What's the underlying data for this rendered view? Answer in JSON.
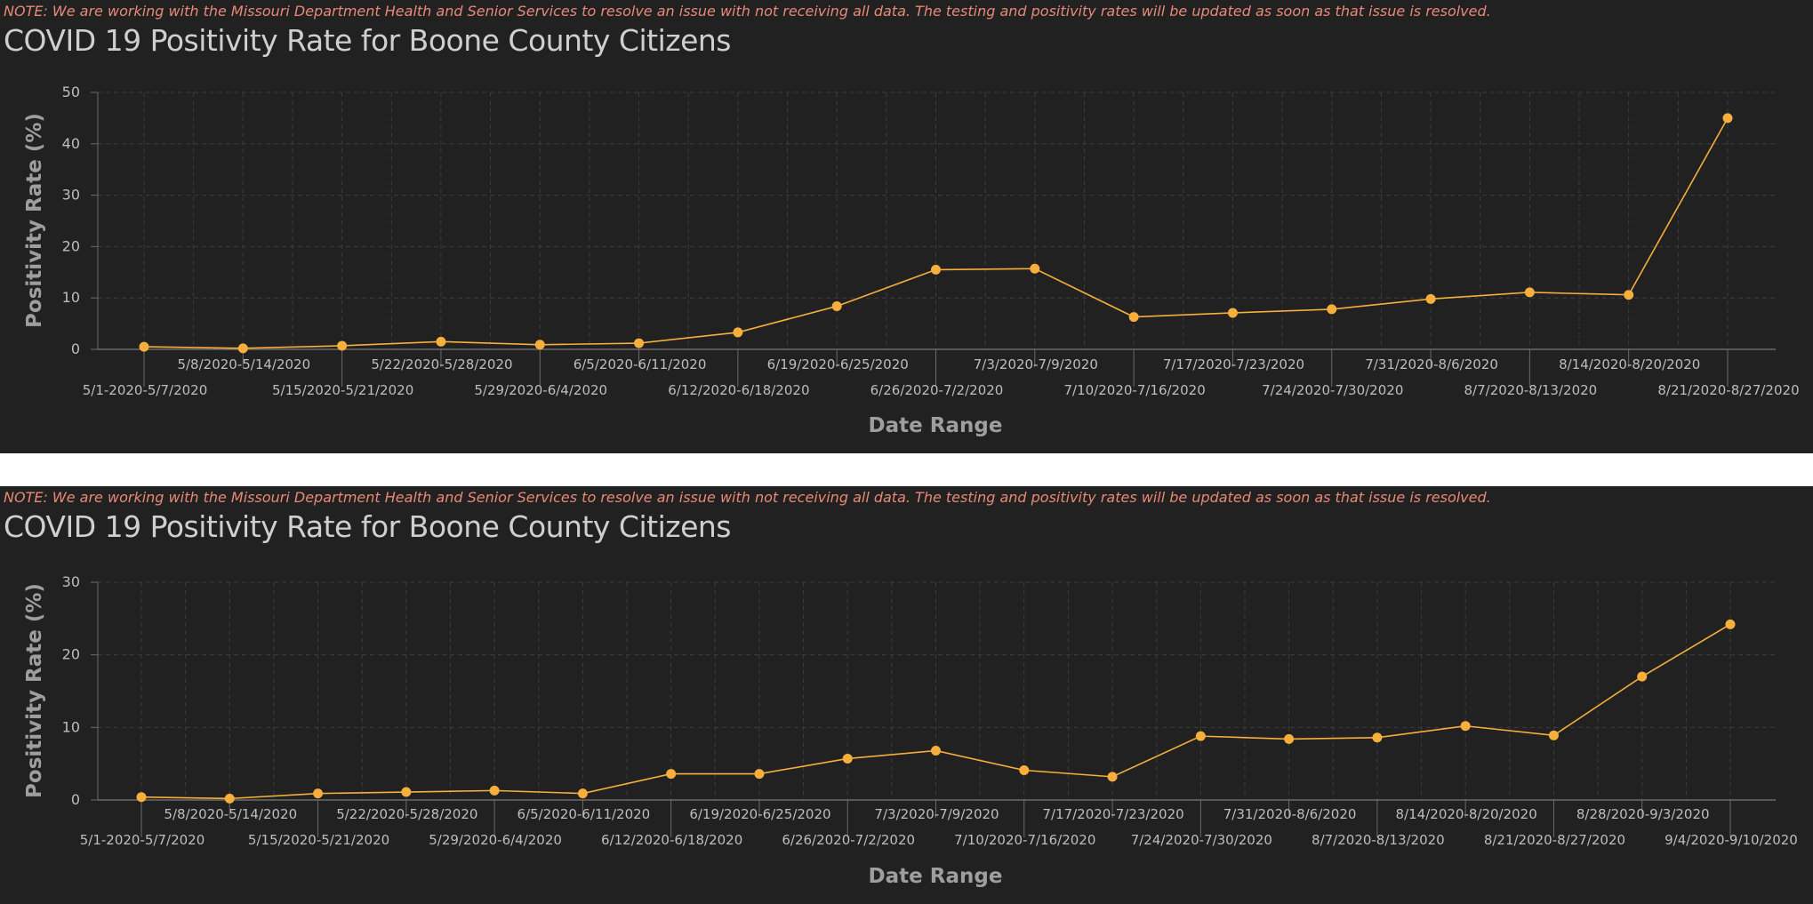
{
  "charts": [
    {
      "note": "NOTE: We are working with the Missouri Department Health and Senior Services to resolve an issue with not receiving all data. The testing and positivity rates will be updated as soon as that issue is resolved.",
      "title": "COVID 19 Positivity Rate for Boone County Citizens"
    },
    {
      "note": "NOTE: We are working with the Missouri Department Health and Senior Services to resolve an issue with not receiving all data. The testing and positivity rates will be updated as soon as that issue is resolved.",
      "title": "COVID 19 Positivity Rate for Boone County Citizens"
    }
  ],
  "colors": {
    "series": "#f6ae3c",
    "background": "#212121",
    "grid": "#3c3c3c",
    "note": "#e88877"
  },
  "chart_data": [
    {
      "type": "line",
      "xlabel": "Date Range",
      "ylabel": "Positivity Rate (%)",
      "ylim": [
        0,
        50
      ],
      "yticks": [
        0,
        10,
        20,
        30,
        40,
        50
      ],
      "grid": true,
      "categories": [
        "5/1-2020-5/7/2020",
        "5/8/2020-5/14/2020",
        "5/15/2020-5/21/2020",
        "5/22/2020-5/28/2020",
        "5/29/2020-6/4/2020",
        "6/5/2020-6/11/2020",
        "6/12/2020-6/18/2020",
        "6/19/2020-6/25/2020",
        "6/26/2020-7/2/2020",
        "7/3/2020-7/9/2020",
        "7/10/2020-7/16/2020",
        "7/17/2020-7/23/2020",
        "7/24/2020-7/30/2020",
        "7/31/2020-8/6/2020",
        "8/7/2020-8/13/2020",
        "8/14/2020-8/20/2020",
        "8/21/2020-8/27/2020"
      ],
      "series": [
        {
          "values": [
            0.5,
            0.2,
            0.7,
            1.5,
            0.9,
            1.2,
            3.3,
            8.4,
            15.5,
            15.7,
            6.3,
            7.1,
            7.8,
            9.8,
            11.1,
            10.6,
            45.0
          ]
        }
      ]
    },
    {
      "type": "line",
      "xlabel": "Date Range",
      "ylabel": "Positivity Rate (%)",
      "ylim": [
        0,
        30
      ],
      "yticks": [
        0,
        10,
        20,
        30
      ],
      "grid": true,
      "categories": [
        "5/1-2020-5/7/2020",
        "5/8/2020-5/14/2020",
        "5/15/2020-5/21/2020",
        "5/22/2020-5/28/2020",
        "5/29/2020-6/4/2020",
        "6/5/2020-6/11/2020",
        "6/12/2020-6/18/2020",
        "6/19/2020-6/25/2020",
        "6/26/2020-7/2/2020",
        "7/3/2020-7/9/2020",
        "7/10/2020-7/16/2020",
        "7/17/2020-7/23/2020",
        "7/24/2020-7/30/2020",
        "7/31/2020-8/6/2020",
        "8/7/2020-8/13/2020",
        "8/14/2020-8/20/2020",
        "8/21/2020-8/27/2020",
        "8/28/2020-9/3/2020",
        "9/4/2020-9/10/2020"
      ],
      "series": [
        {
          "values": [
            0.4,
            0.2,
            0.9,
            1.1,
            1.3,
            0.9,
            3.6,
            3.6,
            5.7,
            6.8,
            4.1,
            3.2,
            8.8,
            8.4,
            8.6,
            10.2,
            8.9,
            17.0,
            24.2
          ]
        }
      ]
    }
  ]
}
